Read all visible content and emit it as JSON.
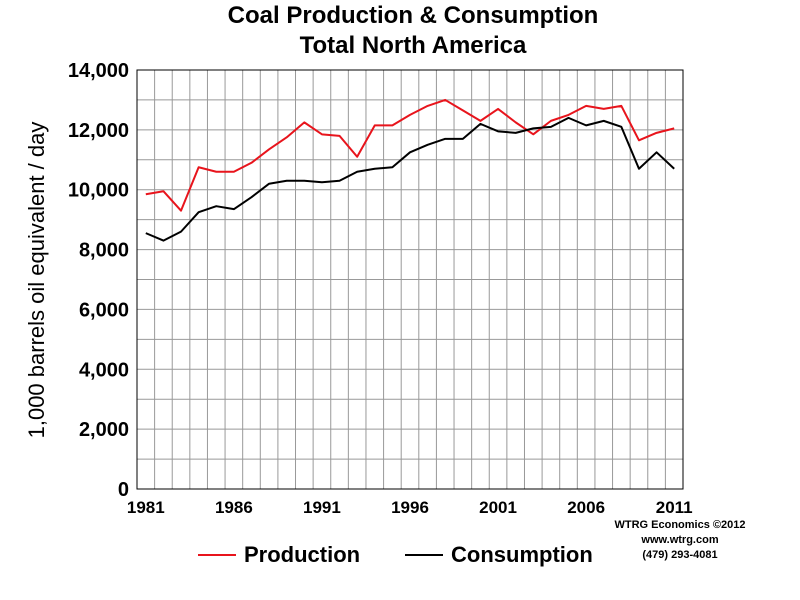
{
  "chart_data": {
    "type": "line",
    "title": "Coal Production & Consumption",
    "subtitle": "Total North America",
    "xlabel": "",
    "ylabel": "1,000 barrels oil equivalent / day",
    "x": [
      1981,
      1982,
      1983,
      1984,
      1985,
      1986,
      1987,
      1988,
      1989,
      1990,
      1991,
      1992,
      1993,
      1994,
      1995,
      1996,
      1997,
      1998,
      1999,
      2000,
      2001,
      2002,
      2003,
      2004,
      2005,
      2006,
      2007,
      2008,
      2009,
      2010,
      2011
    ],
    "xticks": [
      "1981",
      "1986",
      "1991",
      "1996",
      "2001",
      "2006",
      "2011"
    ],
    "yticks": [
      "0",
      "2,000",
      "4,000",
      "6,000",
      "8,000",
      "10,000",
      "12,000",
      "14,000"
    ],
    "ylim": [
      0,
      14000
    ],
    "xlim": [
      1981,
      2011
    ],
    "grid": true,
    "legend_position": "bottom",
    "series": [
      {
        "name": "Production",
        "color": "#e8141c",
        "values": [
          9850,
          9950,
          9300,
          10750,
          10600,
          10600,
          10900,
          11350,
          11750,
          12250,
          11850,
          11800,
          11100,
          12150,
          12150,
          12500,
          12800,
          13000,
          12650,
          12300,
          12700,
          12250,
          11850,
          12300,
          12500,
          12800,
          12700,
          12800,
          11650,
          11900,
          12050
        ]
      },
      {
        "name": "Consumption",
        "color": "#000000",
        "values": [
          8550,
          8300,
          8600,
          9250,
          9450,
          9350,
          9750,
          10200,
          10300,
          10300,
          10250,
          10300,
          10600,
          10700,
          10750,
          11250,
          11500,
          11700,
          11700,
          12200,
          11950,
          11900,
          12050,
          12100,
          12400,
          12150,
          12300,
          12100,
          10700,
          11250,
          10700
        ]
      }
    ]
  },
  "credits": [
    "WTRG Economics  ©2012",
    "www.wtrg.com",
    "(479) 293-4081"
  ]
}
